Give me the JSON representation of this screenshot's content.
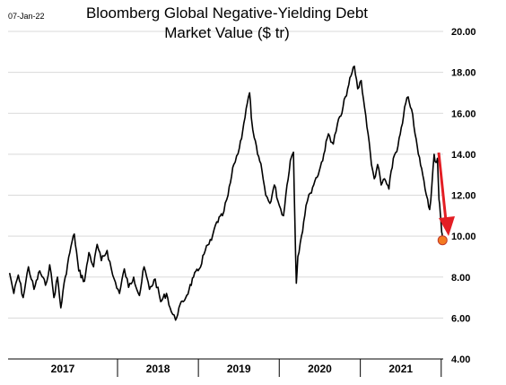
{
  "date_stamp": "07-Jan-22",
  "chart_data": {
    "type": "line",
    "title_lines": [
      "Bloomberg Global Negative-Yielding Debt",
      "Market Value ($ tr)"
    ],
    "ylabel": "",
    "xlabel": "",
    "ylim": [
      4.0,
      20.0
    ],
    "y_ticks": [
      "4.00",
      "6.00",
      "8.00",
      "10.00",
      "12.00",
      "14.00",
      "16.00",
      "18.00",
      "20.00"
    ],
    "x_range": [
      "2016-08-25",
      "2022-01-10"
    ],
    "x_categories": [
      "2017",
      "2018",
      "2019",
      "2020",
      "2021"
    ],
    "grid": "horizontal",
    "series": [
      {
        "color": "#000000",
        "points": [
          [
            "2016-09-01",
            8.2
          ],
          [
            "2016-09-20",
            7.2
          ],
          [
            "2016-10-10",
            8.1
          ],
          [
            "2016-11-01",
            7.0
          ],
          [
            "2016-11-25",
            8.5
          ],
          [
            "2016-12-20",
            7.4
          ],
          [
            "2017-01-15",
            8.3
          ],
          [
            "2017-02-10",
            7.6
          ],
          [
            "2017-03-01",
            8.6
          ],
          [
            "2017-03-20",
            7.0
          ],
          [
            "2017-04-05",
            8.0
          ],
          [
            "2017-04-20",
            6.5
          ],
          [
            "2017-05-10",
            8.0
          ],
          [
            "2017-06-05",
            9.5
          ],
          [
            "2017-06-20",
            10.1
          ],
          [
            "2017-07-10",
            8.3
          ],
          [
            "2017-08-05",
            7.8
          ],
          [
            "2017-08-25",
            9.2
          ],
          [
            "2017-09-15",
            8.5
          ],
          [
            "2017-10-01",
            9.6
          ],
          [
            "2017-10-20",
            8.8
          ],
          [
            "2017-11-15",
            9.3
          ],
          [
            "2017-12-10",
            8.1
          ],
          [
            "2018-01-10",
            7.2
          ],
          [
            "2018-02-01",
            8.4
          ],
          [
            "2018-02-20",
            7.5
          ],
          [
            "2018-03-15",
            8.0
          ],
          [
            "2018-04-10",
            7.1
          ],
          [
            "2018-05-01",
            8.5
          ],
          [
            "2018-05-25",
            7.4
          ],
          [
            "2018-06-20",
            7.9
          ],
          [
            "2018-07-15",
            6.8
          ],
          [
            "2018-08-10",
            7.2
          ],
          [
            "2018-09-01",
            6.3
          ],
          [
            "2018-09-20",
            5.9
          ],
          [
            "2018-10-05",
            6.5
          ],
          [
            "2018-10-25",
            6.8
          ],
          [
            "2018-11-20",
            7.4
          ],
          [
            "2018-12-10",
            8.0
          ],
          [
            "2019-01-05",
            8.4
          ],
          [
            "2019-02-01",
            9.3
          ],
          [
            "2019-03-01",
            9.8
          ],
          [
            "2019-03-25",
            10.7
          ],
          [
            "2019-04-20",
            11.0
          ],
          [
            "2019-05-15",
            12.0
          ],
          [
            "2019-06-10",
            13.5
          ],
          [
            "2019-07-05",
            14.3
          ],
          [
            "2019-07-25",
            15.5
          ],
          [
            "2019-08-10",
            16.5
          ],
          [
            "2019-08-20",
            17.0
          ],
          [
            "2019-08-28",
            15.8
          ],
          [
            "2019-09-10",
            14.8
          ],
          [
            "2019-09-25",
            14.0
          ],
          [
            "2019-10-15",
            13.2
          ],
          [
            "2019-11-01",
            12.0
          ],
          [
            "2019-11-20",
            11.6
          ],
          [
            "2019-12-10",
            12.5
          ],
          [
            "2020-01-01",
            11.5
          ],
          [
            "2020-01-20",
            11.0
          ],
          [
            "2020-02-05",
            12.5
          ],
          [
            "2020-02-20",
            13.7
          ],
          [
            "2020-03-05",
            14.1
          ],
          [
            "2020-03-12",
            10.5
          ],
          [
            "2020-03-18",
            7.7
          ],
          [
            "2020-03-25",
            9.0
          ],
          [
            "2020-04-10",
            10.0
          ],
          [
            "2020-05-01",
            11.5
          ],
          [
            "2020-05-20",
            12.1
          ],
          [
            "2020-06-10",
            12.7
          ],
          [
            "2020-06-30",
            13.2
          ],
          [
            "2020-07-20",
            14.0
          ],
          [
            "2020-08-10",
            15.0
          ],
          [
            "2020-09-01",
            14.5
          ],
          [
            "2020-09-20",
            15.5
          ],
          [
            "2020-10-10",
            16.0
          ],
          [
            "2020-10-25",
            16.8
          ],
          [
            "2020-11-10",
            17.4
          ],
          [
            "2020-11-25",
            18.0
          ],
          [
            "2020-12-05",
            18.3
          ],
          [
            "2020-12-20",
            17.2
          ],
          [
            "2021-01-05",
            17.6
          ],
          [
            "2021-01-20",
            16.3
          ],
          [
            "2021-02-05",
            15.0
          ],
          [
            "2021-02-20",
            13.5
          ],
          [
            "2021-03-05",
            12.8
          ],
          [
            "2021-03-20",
            13.5
          ],
          [
            "2021-04-05",
            12.5
          ],
          [
            "2021-04-20",
            12.8
          ],
          [
            "2021-05-10",
            12.3
          ],
          [
            "2021-05-30",
            13.8
          ],
          [
            "2021-06-20",
            14.4
          ],
          [
            "2021-07-10",
            15.5
          ],
          [
            "2021-07-25",
            16.5
          ],
          [
            "2021-08-05",
            16.8
          ],
          [
            "2021-08-20",
            16.2
          ],
          [
            "2021-09-05",
            15.0
          ],
          [
            "2021-09-20",
            14.0
          ],
          [
            "2021-10-05",
            13.3
          ],
          [
            "2021-10-20",
            12.3
          ],
          [
            "2021-11-01",
            11.8
          ],
          [
            "2021-11-10",
            11.3
          ],
          [
            "2021-11-20",
            12.5
          ],
          [
            "2021-11-30",
            14.0
          ],
          [
            "2021-12-08",
            13.6
          ],
          [
            "2021-12-15",
            13.8
          ],
          [
            "2021-12-22",
            11.8
          ],
          [
            "2021-12-28",
            11.1
          ],
          [
            "2022-01-03",
            10.2
          ],
          [
            "2022-01-07",
            9.8
          ]
        ]
      }
    ],
    "annotations": {
      "last_point_marker_color": "#f47b20",
      "arrow_color": "#e31e24"
    }
  }
}
